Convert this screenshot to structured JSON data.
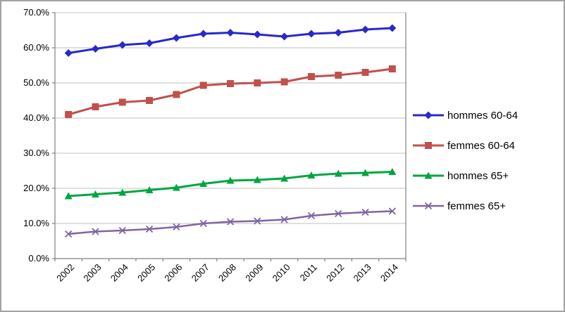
{
  "chart_data": {
    "type": "line",
    "title": "",
    "xlabel": "",
    "ylabel": "",
    "categories": [
      "2002",
      "2003",
      "2004",
      "2005",
      "2006",
      "2007",
      "2008",
      "2009",
      "2010",
      "2011",
      "2012",
      "2013",
      "2014"
    ],
    "series": [
      {
        "name": "hommes 60-64",
        "marker": "diamond",
        "color": "#2828CC",
        "values": [
          58.5,
          59.7,
          60.8,
          61.3,
          62.8,
          64.0,
          64.3,
          63.8,
          63.2,
          64.0,
          64.3,
          65.2,
          65.6
        ]
      },
      {
        "name": "femmes 60-64",
        "marker": "square",
        "color": "#C0504D",
        "values": [
          41.0,
          43.2,
          44.5,
          45.0,
          46.7,
          49.3,
          49.8,
          50.0,
          50.3,
          51.8,
          52.2,
          53.0,
          54.0
        ]
      },
      {
        "name": "hommes 65+",
        "marker": "triangle",
        "color": "#00A640",
        "values": [
          17.8,
          18.3,
          18.8,
          19.5,
          20.2,
          21.3,
          22.2,
          22.4,
          22.8,
          23.7,
          24.2,
          24.4,
          24.7
        ]
      },
      {
        "name": "femmes 65+",
        "marker": "x",
        "color": "#8064A2",
        "values": [
          7.0,
          7.7,
          8.0,
          8.4,
          9.0,
          10.0,
          10.5,
          10.7,
          11.1,
          12.2,
          12.8,
          13.2,
          13.5
        ]
      }
    ],
    "ylim": [
      0,
      70
    ],
    "ytick_step": 10,
    "ytick_labels": [
      "0.0%",
      "10.0%",
      "20.0%",
      "30.0%",
      "40.0%",
      "50.0%",
      "60.0%",
      "70.0%"
    ],
    "grid": true,
    "legend_position": "right"
  },
  "colors": {
    "grid": "#C0C0C0",
    "axis": "#808080",
    "text": "#000000",
    "frame_border": "#A3A3A3",
    "background": "#FFFFFF"
  }
}
